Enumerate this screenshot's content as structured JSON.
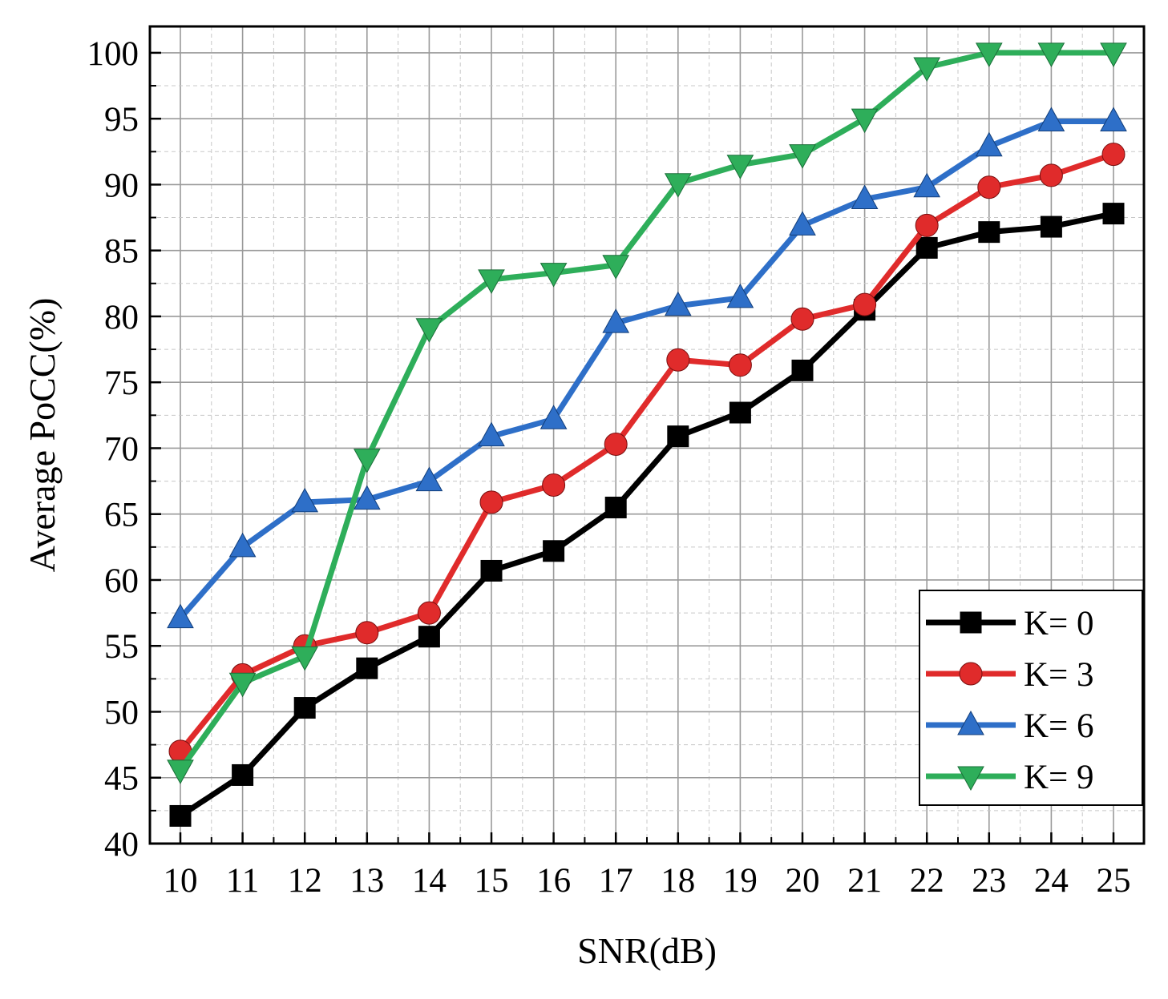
{
  "chart_data": {
    "type": "line",
    "title": "",
    "xlabel": "SNR(dB)",
    "ylabel": "Average PoCC(%)",
    "x": [
      10,
      11,
      12,
      13,
      14,
      15,
      16,
      17,
      18,
      19,
      20,
      21,
      22,
      23,
      24,
      25
    ],
    "xlim": [
      10,
      25
    ],
    "ylim": [
      40,
      102
    ],
    "yticks": [
      40,
      45,
      50,
      55,
      60,
      65,
      70,
      75,
      80,
      85,
      90,
      95,
      100
    ],
    "grid": true,
    "legend_position": "bottom-right",
    "series": [
      {
        "name": "K= 0",
        "color": "#000000",
        "marker": "square",
        "values": [
          42.1,
          45.2,
          50.3,
          53.3,
          55.7,
          60.7,
          62.2,
          65.5,
          70.9,
          72.7,
          75.9,
          80.5,
          85.2,
          86.4,
          86.8,
          87.8
        ]
      },
      {
        "name": "K= 3",
        "color": "#e02b2b",
        "marker": "circle",
        "values": [
          47.0,
          52.8,
          55.0,
          56.0,
          57.5,
          65.9,
          67.2,
          70.3,
          76.7,
          76.3,
          79.8,
          80.9,
          86.9,
          89.8,
          90.7,
          92.3
        ]
      },
      {
        "name": "K= 6",
        "color": "#2e6fc8",
        "marker": "triangle-up",
        "values": [
          57.1,
          62.5,
          65.9,
          66.1,
          67.5,
          70.9,
          72.2,
          79.5,
          80.8,
          81.4,
          86.9,
          88.9,
          89.8,
          92.9,
          94.8,
          94.8
        ]
      },
      {
        "name": "K= 9",
        "color": "#2eae5a",
        "marker": "triangle-down",
        "values": [
          45.6,
          52.2,
          54.2,
          69.2,
          79.1,
          82.8,
          83.3,
          83.9,
          90.1,
          91.5,
          92.3,
          95.0,
          98.9,
          100.0,
          100.0,
          100.0
        ]
      }
    ]
  }
}
